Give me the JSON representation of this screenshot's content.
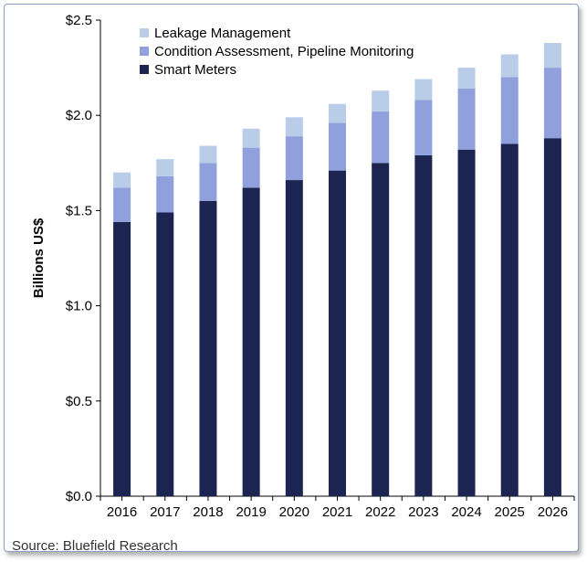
{
  "chart_data": {
    "type": "bar",
    "stacked": true,
    "categories": [
      "2016",
      "2017",
      "2018",
      "2019",
      "2020",
      "2021",
      "2022",
      "2023",
      "2024",
      "2025",
      "2026"
    ],
    "series": [
      {
        "name": "Smart Meters",
        "color": "#1c2452",
        "values": [
          1.44,
          1.49,
          1.55,
          1.62,
          1.66,
          1.71,
          1.75,
          1.79,
          1.82,
          1.85,
          1.88
        ]
      },
      {
        "name": "Condition Assessment, Pipeline Monitoring",
        "color": "#8fa0dc",
        "values": [
          0.18,
          0.19,
          0.2,
          0.21,
          0.23,
          0.25,
          0.27,
          0.29,
          0.32,
          0.35,
          0.37
        ]
      },
      {
        "name": "Leakage Management",
        "color": "#b9cde8",
        "values": [
          0.08,
          0.09,
          0.09,
          0.1,
          0.1,
          0.1,
          0.11,
          0.11,
          0.11,
          0.12,
          0.13
        ]
      }
    ],
    "legend_order": [
      "Leakage Management",
      "Condition Assessment, Pipeline Monitoring",
      "Smart Meters"
    ],
    "ylabel": "Billions US$",
    "xlabel": "",
    "ylim": [
      0,
      2.5
    ],
    "yticks": [
      {
        "value": 0.0,
        "label": "$0.0"
      },
      {
        "value": 0.5,
        "label": "$0.5"
      },
      {
        "value": 1.0,
        "label": "$1.0"
      },
      {
        "value": 1.5,
        "label": "$1.5"
      },
      {
        "value": 2.0,
        "label": "$2.0"
      },
      {
        "value": 2.5,
        "label": "$2.5"
      }
    ],
    "grid": false,
    "legend_position": "top-left"
  },
  "source_text": "Source: Bluefield Research"
}
